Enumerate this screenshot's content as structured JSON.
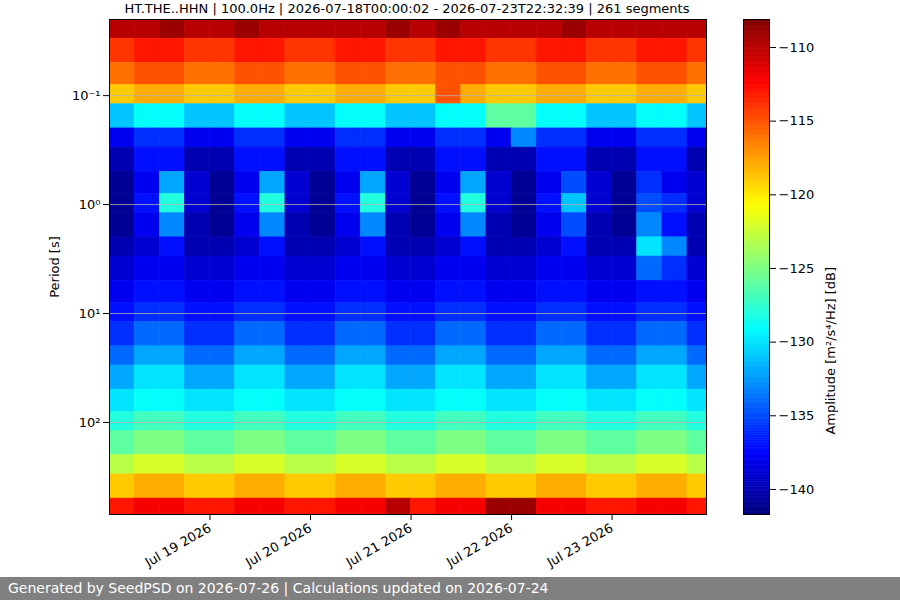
{
  "chart_data": {
    "type": "heatmap",
    "title": "HT.THE..HHN | 100.0Hz | 2026-07-18T00:00:02 - 2026-07-23T22:32:39 | 261 segments",
    "caption": "Generated by SeedPSD on 2026-07-26 | Calculations updated on 2026-07-24",
    "y_label": "Period [s]",
    "log": "y",
    "grid": true,
    "xlim": [
      "2026-07-18T00:00:02Z",
      "2026-07-23T22:32:39Z"
    ],
    "xticks": [
      {
        "value": "2026-07-19T00:00:00Z",
        "label": "Jul 19 2026"
      },
      {
        "value": "2026-07-20T00:00:00Z",
        "label": "Jul 20 2026"
      },
      {
        "value": "2026-07-21T00:00:00Z",
        "label": "Jul 21 2026"
      },
      {
        "value": "2026-07-22T00:00:00Z",
        "label": "Jul 22 2026"
      },
      {
        "value": "2026-07-23T00:00:00Z",
        "label": "Jul 23 2026"
      }
    ],
    "ylim": [
      0.02,
      700
    ],
    "yticks": [
      {
        "value": 0.1,
        "label": "10⁻¹"
      },
      {
        "value": 1,
        "label": "10⁰"
      },
      {
        "value": 10,
        "label": "10¹"
      },
      {
        "value": 100,
        "label": "10²"
      }
    ],
    "cells": {
      "time_edges": [
        "2026-07-18T00:00:02Z",
        "2026-07-18T06:00:00Z",
        "2026-07-18T12:00:00Z",
        "2026-07-18T18:00:00Z",
        "2026-07-19T00:00:00Z",
        "2026-07-19T06:00:00Z",
        "2026-07-19T12:00:00Z",
        "2026-07-19T18:00:00Z",
        "2026-07-20T00:00:00Z",
        "2026-07-20T06:00:00Z",
        "2026-07-20T12:00:00Z",
        "2026-07-20T18:00:00Z",
        "2026-07-21T00:00:00Z",
        "2026-07-21T06:00:00Z",
        "2026-07-21T12:00:00Z",
        "2026-07-21T18:00:00Z",
        "2026-07-22T00:00:00Z",
        "2026-07-22T06:00:00Z",
        "2026-07-22T12:00:00Z",
        "2026-07-22T18:00:00Z",
        "2026-07-23T00:00:00Z",
        "2026-07-23T06:00:00Z",
        "2026-07-23T12:00:00Z",
        "2026-07-23T18:00:00Z",
        "2026-07-23T22:32:39Z"
      ],
      "period_edges": [
        0.02,
        0.03,
        0.05,
        0.08,
        0.12,
        0.2,
        0.3,
        0.5,
        0.8,
        1.2,
        2,
        3,
        5,
        8,
        12,
        20,
        30,
        50,
        80,
        120,
        200,
        300,
        500,
        700
      ],
      "values": [
        [
          -110,
          -110,
          -109,
          -110,
          -110,
          -109,
          -110,
          -110,
          -110,
          -110,
          -110,
          -109,
          -110,
          -109,
          -110,
          -110,
          -110,
          -110,
          -109,
          -110,
          -110,
          -110,
          -110,
          -110
        ],
        [
          -114,
          -113,
          -113,
          -114,
          -114,
          -113,
          -113,
          -114,
          -114,
          -113,
          -113,
          -114,
          -114,
          -113,
          -113,
          -114,
          -114,
          -113,
          -113,
          -114,
          -114,
          -113,
          -113,
          -114
        ],
        [
          -116,
          -115,
          -115,
          -116,
          -116,
          -115,
          -115,
          -116,
          -116,
          -115,
          -115,
          -116,
          -116,
          -115,
          -115,
          -116,
          -116,
          -115,
          -115,
          -116,
          -116,
          -115,
          -115,
          -116
        ],
        [
          -119,
          -118,
          -118,
          -119,
          -119,
          -118,
          -118,
          -119,
          -119,
          -118,
          -118,
          -119,
          -119,
          -115,
          -118,
          -119,
          -119,
          -118,
          -118,
          -119,
          -119,
          -118,
          -118,
          -119
        ],
        [
          -131,
          -129,
          -129,
          -131,
          -131,
          -129,
          -129,
          -131,
          -131,
          -129,
          -129,
          -131,
          -131,
          -129,
          -129,
          -126,
          -126,
          -129,
          -129,
          -131,
          -131,
          -129,
          -129,
          -131
        ],
        [
          -138,
          -136,
          -136,
          -138,
          -138,
          -136,
          -136,
          -138,
          -138,
          -136,
          -136,
          -138,
          -138,
          -136,
          -136,
          -138,
          -133,
          -136,
          -136,
          -138,
          -138,
          -136,
          -136,
          -138
        ],
        [
          -140,
          -137,
          -137,
          -140,
          -140,
          -137,
          -137,
          -140,
          -140,
          -137,
          -137,
          -140,
          -140,
          -137,
          -137,
          -140,
          -140,
          -137,
          -137,
          -140,
          -140,
          -137,
          -137,
          -140
        ],
        [
          -141,
          -138,
          -132,
          -139,
          -141,
          -138,
          -132,
          -139,
          -141,
          -138,
          -132,
          -139,
          -141,
          -138,
          -132,
          -139,
          -141,
          -138,
          -135,
          -139,
          -141,
          -136,
          -138,
          -139
        ],
        [
          -141,
          -137,
          -128,
          -139,
          -141,
          -137,
          -128,
          -139,
          -141,
          -137,
          -128,
          -139,
          -141,
          -137,
          -128,
          -139,
          -141,
          -137,
          -131,
          -139,
          -141,
          -135,
          -136,
          -139
        ],
        [
          -141,
          -138,
          -133,
          -140,
          -141,
          -138,
          -133,
          -140,
          -141,
          -138,
          -133,
          -140,
          -141,
          -138,
          -133,
          -140,
          -141,
          -138,
          -135,
          -140,
          -141,
          -133,
          -137,
          -140
        ],
        [
          -140,
          -139,
          -137,
          -140,
          -140,
          -139,
          -137,
          -140,
          -140,
          -139,
          -137,
          -140,
          -140,
          -139,
          -137,
          -140,
          -140,
          -139,
          -137,
          -140,
          -140,
          -130,
          -133,
          -140
        ],
        [
          -139,
          -138,
          -138,
          -139,
          -139,
          -138,
          -138,
          -139,
          -139,
          -138,
          -138,
          -139,
          -139,
          -138,
          -138,
          -139,
          -139,
          -138,
          -138,
          -139,
          -139,
          -134,
          -136,
          -139
        ],
        [
          -138,
          -137,
          -137,
          -138,
          -138,
          -137,
          -137,
          -138,
          -138,
          -137,
          -137,
          -138,
          -138,
          -137,
          -137,
          -138,
          -138,
          -137,
          -137,
          -138,
          -138,
          -137,
          -137,
          -138
        ],
        [
          -137,
          -136,
          -136,
          -137,
          -137,
          -136,
          -136,
          -137,
          -137,
          -136,
          -136,
          -137,
          -137,
          -136,
          -136,
          -137,
          -137,
          -136,
          -136,
          -137,
          -137,
          -136,
          -136,
          -137
        ],
        [
          -136,
          -134,
          -134,
          -136,
          -136,
          -134,
          -134,
          -136,
          -136,
          -134,
          -134,
          -136,
          -136,
          -134,
          -134,
          -136,
          -136,
          -134,
          -134,
          -136,
          -136,
          -134,
          -134,
          -136
        ],
        [
          -134,
          -132,
          -132,
          -134,
          -134,
          -132,
          -132,
          -134,
          -134,
          -132,
          -132,
          -134,
          -134,
          -132,
          -132,
          -134,
          -134,
          -132,
          -132,
          -134,
          -134,
          -132,
          -132,
          -134
        ],
        [
          -132,
          -130,
          -130,
          -132,
          -132,
          -130,
          -130,
          -132,
          -132,
          -130,
          -130,
          -132,
          -132,
          -130,
          -130,
          -132,
          -132,
          -130,
          -130,
          -132,
          -132,
          -130,
          -130,
          -132
        ],
        [
          -130,
          -129,
          -129,
          -130,
          -130,
          -129,
          -129,
          -130,
          -130,
          -129,
          -129,
          -130,
          -130,
          -129,
          -129,
          -130,
          -130,
          -129,
          -129,
          -130,
          -130,
          -129,
          -129,
          -130
        ],
        [
          -128,
          -127,
          -127,
          -128,
          -128,
          -127,
          -127,
          -128,
          -128,
          -127,
          -127,
          -128,
          -128,
          -127,
          -127,
          -128,
          -128,
          -127,
          -127,
          -128,
          -128,
          -127,
          -127,
          -128
        ],
        [
          -126,
          -125,
          -125,
          -126,
          -126,
          -125,
          -125,
          -126,
          -126,
          -125,
          -125,
          -126,
          -126,
          -125,
          -125,
          -126,
          -126,
          -125,
          -125,
          -126,
          -126,
          -125,
          -125,
          -126
        ],
        [
          -123,
          -122,
          -122,
          -123,
          -123,
          -122,
          -122,
          -123,
          -123,
          -122,
          -122,
          -123,
          -123,
          -122,
          -122,
          -123,
          -123,
          -122,
          -122,
          -123,
          -123,
          -122,
          -122,
          -123
        ],
        [
          -119,
          -118,
          -118,
          -119,
          -119,
          -118,
          -118,
          -119,
          -119,
          -118,
          -118,
          -119,
          -119,
          -118,
          -118,
          -119,
          -119,
          -118,
          -118,
          -119,
          -119,
          -118,
          -118,
          -119
        ],
        [
          -113,
          -112,
          -112,
          -113,
          -113,
          -112,
          -112,
          -113,
          -113,
          -112,
          -112,
          -110,
          -113,
          -112,
          -112,
          -109,
          -109,
          -112,
          -112,
          -113,
          -113,
          -112,
          -112,
          -113
        ]
      ]
    },
    "colorbar": {
      "label": "Amplitude [m²/s⁴/Hz] [dB]",
      "range": [
        -141.7,
        -108.1
      ],
      "ticks": [
        {
          "value": -140,
          "label": "−140"
        },
        {
          "value": -135,
          "label": "−135"
        },
        {
          "value": -130,
          "label": "−130"
        },
        {
          "value": -125,
          "label": "−125"
        },
        {
          "value": -120,
          "label": "−120"
        },
        {
          "value": -115,
          "label": "−115"
        },
        {
          "value": -110,
          "label": "−110"
        }
      ]
    }
  }
}
